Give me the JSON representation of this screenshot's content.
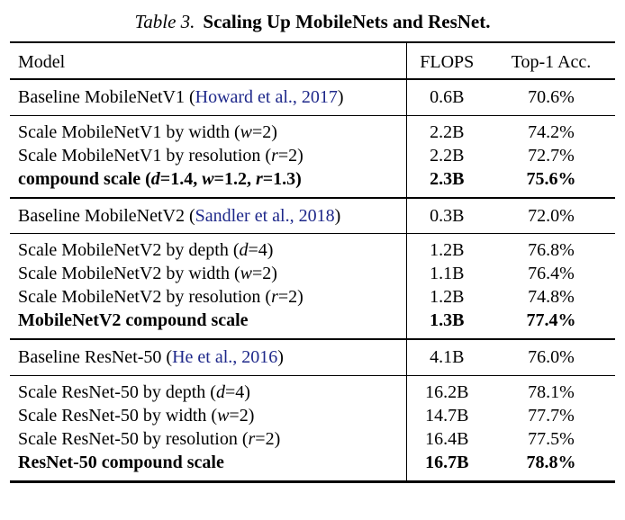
{
  "caption": {
    "label": "Table 3.",
    "title": "Scaling Up MobileNets and ResNet."
  },
  "colors": {
    "citation_link": "#1e288a",
    "rule": "#000000",
    "background": "#ffffff"
  },
  "table": {
    "columns": [
      "Model",
      "FLOPS",
      "Top-1 Acc."
    ],
    "sections": [
      {
        "baseline": {
          "model": [
            {
              "t": "Baseline MobileNetV1 ("
            },
            {
              "t": "Howard et al., 2017",
              "s": "cite"
            },
            {
              "t": ")"
            }
          ],
          "flops": "0.6B",
          "acc": "70.6%"
        },
        "rows": [
          {
            "model": [
              {
                "t": "Scale MobileNetV1 by width ("
              },
              {
                "t": "w",
                "s": "var"
              },
              {
                "t": "=2)"
              }
            ],
            "flops": "2.2B",
            "acc": "74.2%"
          },
          {
            "model": [
              {
                "t": "Scale MobileNetV1 by resolution ("
              },
              {
                "t": "r",
                "s": "var"
              },
              {
                "t": "=2)"
              }
            ],
            "flops": "2.2B",
            "acc": "72.7%"
          },
          {
            "model": [
              {
                "t": "compound scale ("
              },
              {
                "t": "d",
                "s": "var"
              },
              {
                "t": "=1.4, "
              },
              {
                "t": "w",
                "s": "var"
              },
              {
                "t": "=1.2, "
              },
              {
                "t": "r",
                "s": "var"
              },
              {
                "t": "=1.3)"
              }
            ],
            "flops": "2.3B",
            "acc": "75.6%",
            "bold": true
          }
        ]
      },
      {
        "baseline": {
          "model": [
            {
              "t": "Baseline MobileNetV2 ("
            },
            {
              "t": "Sandler et al., 2018",
              "s": "cite"
            },
            {
              "t": ")"
            }
          ],
          "flops": "0.3B",
          "acc": "72.0%"
        },
        "rows": [
          {
            "model": [
              {
                "t": "Scale MobileNetV2 by depth ("
              },
              {
                "t": "d",
                "s": "var"
              },
              {
                "t": "=4)"
              }
            ],
            "flops": "1.2B",
            "acc": "76.8%"
          },
          {
            "model": [
              {
                "t": "Scale MobileNetV2 by width ("
              },
              {
                "t": "w",
                "s": "var"
              },
              {
                "t": "=2)"
              }
            ],
            "flops": "1.1B",
            "acc": "76.4%"
          },
          {
            "model": [
              {
                "t": "Scale MobileNetV2 by resolution ("
              },
              {
                "t": "r",
                "s": "var"
              },
              {
                "t": "=2)"
              }
            ],
            "flops": "1.2B",
            "acc": "74.8%"
          },
          {
            "model": [
              {
                "t": "MobileNetV2 compound scale"
              }
            ],
            "flops": "1.3B",
            "acc": "77.4%",
            "bold": true
          }
        ]
      },
      {
        "baseline": {
          "model": [
            {
              "t": "Baseline ResNet-50 ("
            },
            {
              "t": "He et al., 2016",
              "s": "cite"
            },
            {
              "t": ")"
            }
          ],
          "flops": "4.1B",
          "acc": "76.0%"
        },
        "rows": [
          {
            "model": [
              {
                "t": "Scale ResNet-50 by depth ("
              },
              {
                "t": "d",
                "s": "var"
              },
              {
                "t": "=4)"
              }
            ],
            "flops": "16.2B",
            "acc": "78.1%"
          },
          {
            "model": [
              {
                "t": "Scale ResNet-50 by width ("
              },
              {
                "t": "w",
                "s": "var"
              },
              {
                "t": "=2)"
              }
            ],
            "flops": "14.7B",
            "acc": "77.7%"
          },
          {
            "model": [
              {
                "t": "Scale ResNet-50 by resolution ("
              },
              {
                "t": "r",
                "s": "var"
              },
              {
                "t": "=2)"
              }
            ],
            "flops": "16.4B",
            "acc": "77.5%"
          },
          {
            "model": [
              {
                "t": "ResNet-50 compound scale"
              }
            ],
            "flops": "16.7B",
            "acc": "78.8%",
            "bold": true
          }
        ]
      }
    ]
  }
}
